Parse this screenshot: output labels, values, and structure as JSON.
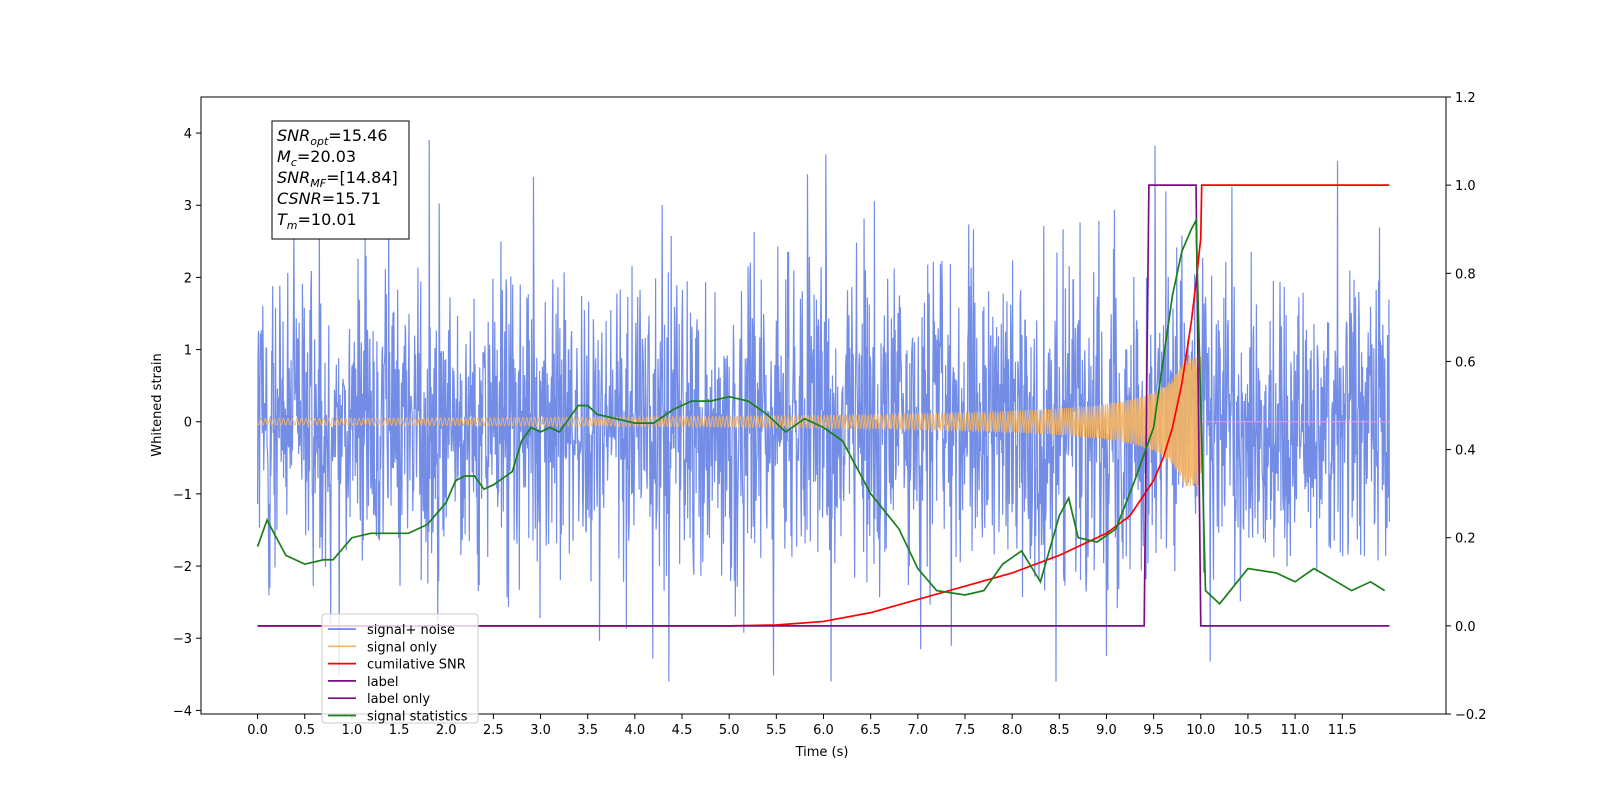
{
  "chart_data": {
    "type": "line",
    "xlabel": "Time (s)",
    "ylabel": "Whitened strain",
    "xlim": [
      -0.6,
      12.6
    ],
    "ylim": [
      -4.05,
      4.5
    ],
    "ylim_right": [
      -0.2,
      1.2
    ],
    "x_ticks": [
      0.0,
      0.5,
      1.0,
      1.5,
      2.0,
      2.5,
      3.0,
      3.5,
      4.0,
      4.5,
      5.0,
      5.5,
      6.0,
      6.5,
      7.0,
      7.5,
      8.0,
      8.5,
      9.0,
      9.5,
      10.0,
      10.5,
      11.0,
      11.5
    ],
    "x_tick_labels": [
      "0.0",
      "0.5",
      "1.0",
      "1.5",
      "2.0",
      "2.5",
      "3.0",
      "3.5",
      "4.0",
      "4.5",
      "5.0",
      "5.5",
      "6.0",
      "6.5",
      "7.0",
      "7.5",
      "8.0",
      "8.5",
      "9.0",
      "9.5",
      "10.0",
      "10.5",
      "11.0",
      "11.5"
    ],
    "y_ticks": [
      -4,
      -3,
      -2,
      -1,
      0,
      1,
      2,
      3,
      4
    ],
    "y_tick_labels": [
      "−4",
      "−3",
      "−2",
      "−1",
      "0",
      "1",
      "2",
      "3",
      "4"
    ],
    "y_right_ticks": [
      -0.2,
      0.0,
      0.2,
      0.4,
      0.6,
      0.8,
      1.0,
      1.2
    ],
    "y_right_tick_labels": [
      "−0.2",
      "0.0",
      "0.2",
      "0.4",
      "0.6",
      "0.8",
      "1.0",
      "1.2"
    ],
    "annotation": {
      "lines": [
        {
          "sym": "SNR",
          "sub": "opt",
          "val": "=15.46"
        },
        {
          "sym": "M",
          "sub": "c",
          "val": "=20.03"
        },
        {
          "sym": "SNR",
          "sub": "MF",
          "val": "=[14.84]"
        },
        {
          "sym": "CSNR",
          "sub": "",
          "val": "=15.71"
        },
        {
          "sym": "T",
          "sub": "m",
          "val": "=10.01"
        }
      ]
    },
    "legend": {
      "placement": "lower-left",
      "entries": [
        {
          "label": "signal+ noise",
          "color": "#6b87e6"
        },
        {
          "label": "signal only",
          "color": "#f5b462"
        },
        {
          "label": "cumilative SNR",
          "color": "#ff0000"
        },
        {
          "label": "label",
          "color": "#7a0f85"
        },
        {
          "label": "label only",
          "color": "#7a0f85"
        },
        {
          "label": "signal statistics",
          "color": "#1a7f1a"
        }
      ]
    },
    "series": [
      {
        "name": "signal+ noise",
        "axis": "left",
        "color": "#6b87e6",
        "kind": "noise",
        "x_range": [
          0.0,
          12.0
        ],
        "amplitude_range": [
          -3.6,
          4.1
        ]
      },
      {
        "name": "signal only",
        "axis": "left",
        "color": "#f5b462",
        "kind": "chirp",
        "x_range": [
          0.0,
          12.0
        ],
        "merger_time": 10.01
      },
      {
        "name": "cumilative SNR",
        "axis": "right",
        "color": "#ff0000",
        "x": [
          0.0,
          5.0,
          5.5,
          6.0,
          6.5,
          7.0,
          7.5,
          8.0,
          8.5,
          9.0,
          9.25,
          9.5,
          9.6,
          9.7,
          9.8,
          9.9,
          9.95,
          10.0,
          10.01,
          12.0
        ],
        "y": [
          0.0,
          0.0,
          0.002,
          0.01,
          0.03,
          0.06,
          0.09,
          0.12,
          0.16,
          0.21,
          0.25,
          0.33,
          0.38,
          0.45,
          0.55,
          0.69,
          0.78,
          0.88,
          1.0,
          1.0
        ]
      },
      {
        "name": "label",
        "axis": "right",
        "color": "#7a0f85",
        "x": [
          0.0,
          9.4,
          9.45,
          9.95,
          10.0,
          12.0
        ],
        "y": [
          0.0,
          0.0,
          1.0,
          1.0,
          0.0,
          0.0
        ]
      },
      {
        "name": "signal statistics",
        "axis": "right",
        "color": "#1a7f1a",
        "x": [
          0.0,
          0.1,
          0.3,
          0.5,
          0.7,
          0.8,
          1.0,
          1.2,
          1.4,
          1.6,
          1.8,
          2.0,
          2.1,
          2.2,
          2.3,
          2.4,
          2.5,
          2.7,
          2.8,
          2.9,
          3.0,
          3.1,
          3.2,
          3.4,
          3.5,
          3.6,
          3.8,
          4.0,
          4.2,
          4.4,
          4.6,
          4.8,
          5.0,
          5.2,
          5.4,
          5.6,
          5.8,
          6.0,
          6.2,
          6.5,
          6.8,
          7.0,
          7.2,
          7.5,
          7.7,
          7.9,
          8.1,
          8.3,
          8.5,
          8.6,
          8.7,
          8.9,
          9.1,
          9.3,
          9.5,
          9.6,
          9.7,
          9.8,
          9.9,
          9.95,
          10.05,
          10.2,
          10.5,
          10.8,
          11.0,
          11.2,
          11.6,
          11.8,
          11.95
        ],
        "y": [
          0.18,
          0.24,
          0.16,
          0.14,
          0.15,
          0.15,
          0.2,
          0.21,
          0.21,
          0.21,
          0.23,
          0.28,
          0.33,
          0.34,
          0.34,
          0.31,
          0.32,
          0.35,
          0.42,
          0.45,
          0.44,
          0.45,
          0.44,
          0.5,
          0.5,
          0.48,
          0.47,
          0.46,
          0.46,
          0.49,
          0.51,
          0.51,
          0.52,
          0.51,
          0.48,
          0.44,
          0.47,
          0.45,
          0.42,
          0.3,
          0.22,
          0.13,
          0.08,
          0.07,
          0.08,
          0.14,
          0.17,
          0.1,
          0.25,
          0.29,
          0.2,
          0.19,
          0.22,
          0.33,
          0.45,
          0.6,
          0.75,
          0.85,
          0.9,
          0.92,
          0.08,
          0.05,
          0.13,
          0.12,
          0.1,
          0.13,
          0.08,
          0.1,
          0.08
        ]
      }
    ]
  }
}
